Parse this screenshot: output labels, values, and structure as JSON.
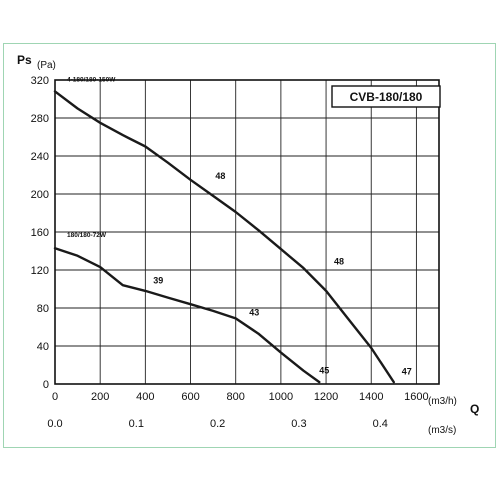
{
  "chart_data": {
    "type": "line",
    "title": "CVB-180/180",
    "ylabel": "Ps",
    "ylabel_unit": "(Pa)",
    "xlabel": "Q",
    "x_unit_primary": "(m3/h)",
    "x_unit_secondary": "(m3/s)",
    "xlim": [
      0,
      1700
    ],
    "ylim": [
      0,
      320
    ],
    "x_ticks": [
      "0",
      "200",
      "400",
      "600",
      "800",
      "1000",
      "1200",
      "1400",
      "1600"
    ],
    "x_ticks_secondary": [
      {
        "label": "0.0",
        "value": 0
      },
      {
        "label": "0.1",
        "value": 360
      },
      {
        "label": "0.2",
        "value": 720
      },
      {
        "label": "0.3",
        "value": 1080
      },
      {
        "label": "0.4",
        "value": 1440
      }
    ],
    "y_ticks": [
      "0",
      "40",
      "80",
      "120",
      "160",
      "200",
      "240",
      "280",
      "320"
    ],
    "grid": true,
    "series": [
      {
        "name": "4-180/180-150W",
        "points": [
          [
            0,
            308
          ],
          [
            100,
            290
          ],
          [
            200,
            275
          ],
          [
            300,
            262
          ],
          [
            400,
            250
          ],
          [
            500,
            233
          ],
          [
            600,
            215
          ],
          [
            700,
            198
          ],
          [
            800,
            181
          ],
          [
            900,
            162
          ],
          [
            1000,
            142
          ],
          [
            1100,
            122
          ],
          [
            1200,
            98
          ],
          [
            1300,
            68
          ],
          [
            1400,
            38
          ],
          [
            1500,
            2
          ]
        ]
      },
      {
        "name": "180/180-72W",
        "points": [
          [
            0,
            143
          ],
          [
            100,
            135
          ],
          [
            200,
            123
          ],
          [
            300,
            104
          ],
          [
            400,
            98
          ],
          [
            500,
            91
          ],
          [
            600,
            84
          ],
          [
            700,
            77
          ],
          [
            800,
            69
          ],
          [
            900,
            53
          ],
          [
            1000,
            33
          ],
          [
            1100,
            14
          ],
          [
            1170,
            2
          ]
        ]
      }
    ],
    "annotations": [
      {
        "text": "48",
        "x": 710,
        "y": 216
      },
      {
        "text": "48",
        "x": 1235,
        "y": 126
      },
      {
        "text": "39",
        "x": 435,
        "y": 106
      },
      {
        "text": "43",
        "x": 860,
        "y": 72
      },
      {
        "text": "45",
        "x": 1170,
        "y": 11
      },
      {
        "text": "47",
        "x": 1535,
        "y": 10
      }
    ]
  }
}
